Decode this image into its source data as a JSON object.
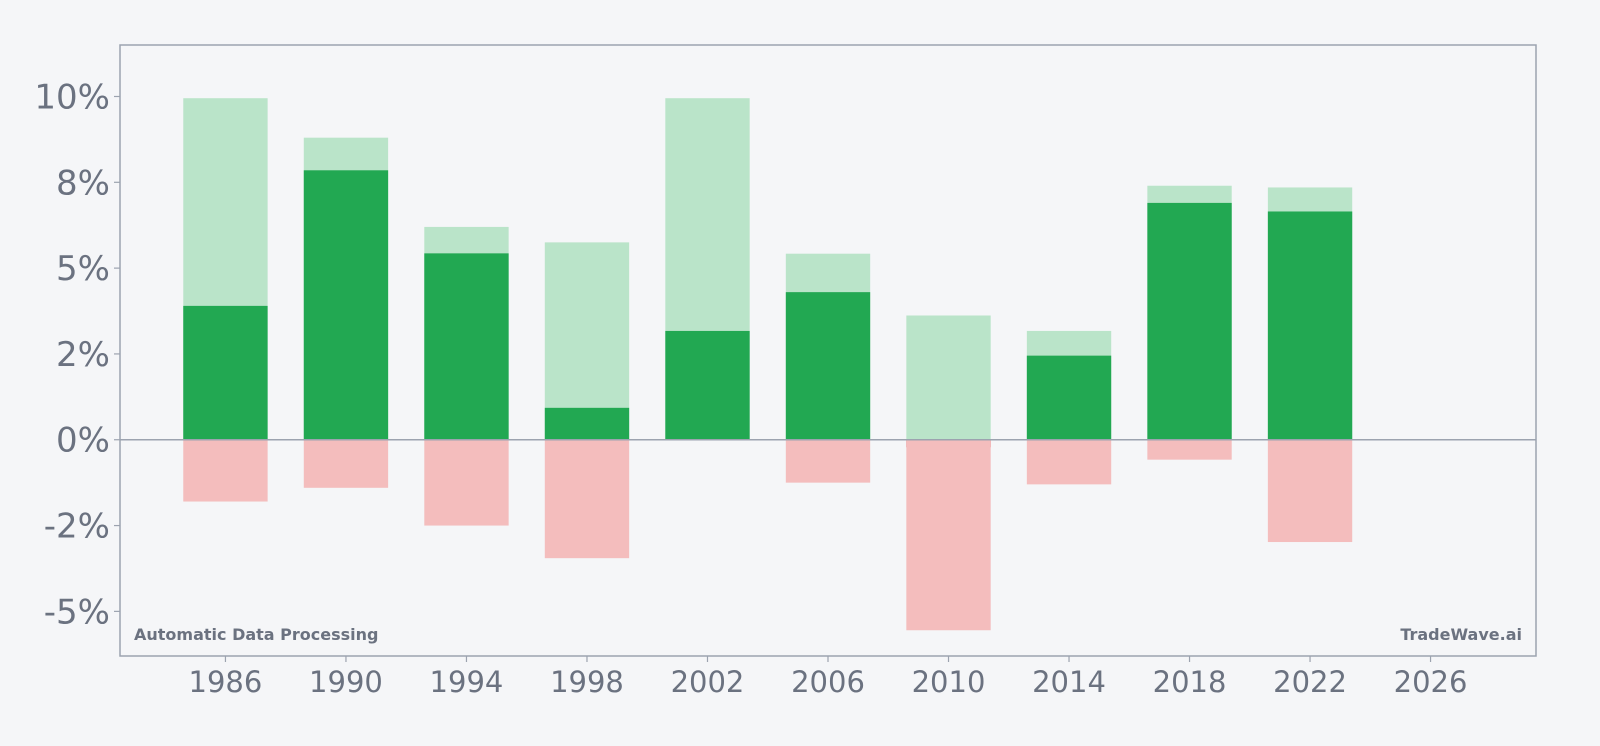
{
  "chart_data": {
    "type": "bar",
    "categories": [
      1986,
      1990,
      1994,
      1998,
      2002,
      2006,
      2010,
      2014,
      2018,
      2022
    ],
    "x_ticks": [
      "1986",
      "1990",
      "1994",
      "1998",
      "2002",
      "2006",
      "2010",
      "2014",
      "2018",
      "2022",
      "2026"
    ],
    "y_ticks": [
      {
        "value": 10,
        "label": "10%"
      },
      {
        "value": 7.5,
        "label": "8%"
      },
      {
        "value": 5,
        "label": "5%"
      },
      {
        "value": 2.5,
        "label": "2%"
      },
      {
        "value": 0,
        "label": "0%"
      },
      {
        "value": -2.5,
        "label": "-2%"
      },
      {
        "value": -5,
        "label": "-5%"
      }
    ],
    "xlim": [
      1982.5,
      2029.5
    ],
    "ylim": [
      -6.3,
      11.5
    ],
    "series": [
      {
        "values": [
          9.95,
          8.8,
          6.2,
          5.75,
          9.95,
          5.42,
          3.62,
          3.17,
          7.4,
          7.35
        ],
        "color": "#bae4c9"
      },
      {
        "values": [
          3.9,
          7.85,
          5.43,
          0.93,
          3.17,
          4.3,
          -0.22,
          2.45,
          6.9,
          6.65
        ],
        "color": "#22a852",
        "negative_color": "#dc3b3b"
      },
      {
        "values": [
          -1.8,
          -1.4,
          -2.5,
          -3.45,
          0,
          -1.25,
          -5.55,
          -1.3,
          -0.58,
          -2.98
        ],
        "color": "#f4bdbd"
      }
    ],
    "grid": false,
    "bottom_left_label": "Automatic Data Processing",
    "bottom_right_label": "TradeWave.ai"
  }
}
